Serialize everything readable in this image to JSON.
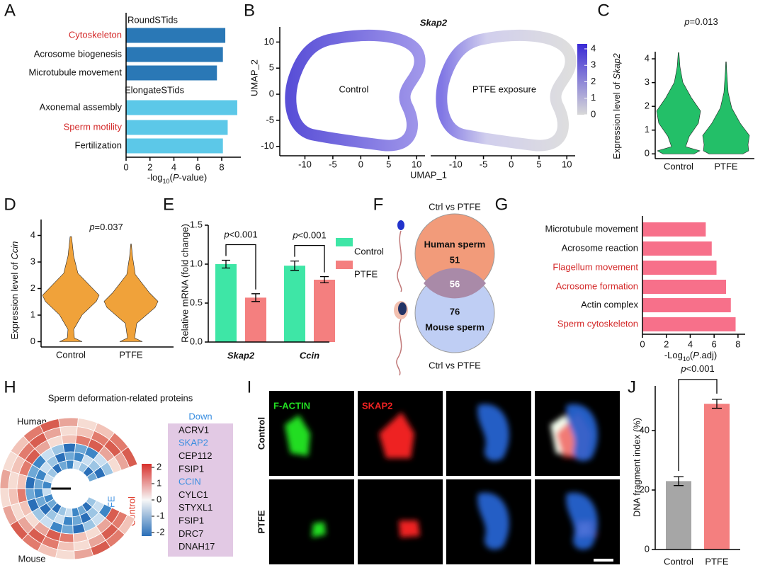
{
  "panel_labels": [
    "A",
    "B",
    "C",
    "D",
    "E",
    "F",
    "G",
    "H",
    "I",
    "J"
  ],
  "chart_data": [
    {
      "type": "barh",
      "group_labels": [
        "RoundSTids",
        "ElongateSTids"
      ],
      "categories": [
        "Cytoskeleton",
        "Acrosome biogenesis",
        "Microtubule movement",
        "Axonemal assembly",
        "Sperm motility",
        "Fertilization"
      ],
      "values": [
        8.3,
        8.1,
        7.6,
        9.3,
        8.5,
        8.1
      ],
      "colors": [
        "#2a78b6",
        "#2a78b6",
        "#2a78b6",
        "#5cc8e8",
        "#5cc8e8",
        "#5cc8e8"
      ],
      "label_colors": [
        "#d42a2a",
        "#111111",
        "#111111",
        "#111111",
        "#d42a2a",
        "#111111"
      ],
      "xlabel_parts": [
        "-log",
        "10",
        "(",
        "P",
        "-value)"
      ],
      "xlim": [
        0,
        9.6
      ],
      "xticks": [
        0,
        2,
        4,
        6,
        8
      ]
    },
    {
      "type": "umap",
      "title": "Skap2",
      "xlabel": "UMAP_1",
      "ylabel": "UMAP_2",
      "panels": [
        "Control",
        "PTFE exposure"
      ],
      "xlim": [
        -14.5,
        11.5
      ],
      "xticks": [
        -10,
        -5,
        0,
        5,
        10
      ],
      "ylim": [
        -11.8,
        12.9
      ],
      "yticks": [
        10,
        5,
        0,
        -5,
        -10
      ],
      "colorbar": {
        "lim": [
          0,
          4.3
        ],
        "ticks": [
          4,
          3,
          2,
          1,
          0
        ],
        "colors": [
          "#d8d8d8",
          "#3a2ad6"
        ]
      }
    },
    {
      "type": "violin",
      "title_parts": [
        "p",
        "=0.013"
      ],
      "categories": [
        "Control",
        "PTFE"
      ],
      "color": "#23bf68",
      "ylabel_parts": [
        "Expression level of ",
        "Skap2"
      ],
      "ylim": [
        -0.2,
        4.3
      ],
      "yticks": [
        0,
        1,
        2,
        3,
        4
      ]
    },
    {
      "type": "violin",
      "title_parts": [
        "p",
        "=0.037"
      ],
      "categories": [
        "Control",
        "PTFE"
      ],
      "color": "#f0a23a",
      "ylabel_parts": [
        "Expression level of ",
        "Ccin"
      ],
      "ylim": [
        -0.2,
        4.6
      ],
      "yticks": [
        0,
        1,
        2,
        3,
        4
      ]
    },
    {
      "type": "grouped_bar",
      "categories": [
        "Skap2",
        "Ccin"
      ],
      "ylabel": "Relative mRNA (fold change)",
      "series": [
        {
          "name": "Control",
          "color": "#3ee6a6",
          "values": [
            1.0,
            0.98
          ],
          "errors": [
            0.05,
            0.06
          ]
        },
        {
          "name": "PTFE",
          "color": "#f47f7f",
          "values": [
            0.57,
            0.8
          ],
          "errors": [
            0.05,
            0.04
          ]
        }
      ],
      "annotations": [
        [
          "p",
          "<0.001"
        ],
        [
          "p",
          "<0.001"
        ]
      ],
      "ylim": [
        0,
        1.5
      ],
      "yticks": [
        {
          "value": 0,
          "label": "0.0"
        },
        0.5,
        {
          "value": 1,
          "label": "1.0"
        },
        1.5
      ]
    },
    {
      "type": "barh",
      "categories": [
        "Microtubule movement",
        "Acrosome reaction",
        "Flagellum movement",
        "Acrosome formation",
        "Actin complex",
        "Sperm cytoskeleton"
      ],
      "values": [
        5.3,
        5.8,
        6.2,
        7.0,
        7.4,
        7.8
      ],
      "color": "#f7708a",
      "label_colors": [
        "#111111",
        "#111111",
        "#d42a2a",
        "#d42a2a",
        "#111111",
        "#d42a2a"
      ],
      "xlabel_parts": [
        "-Log",
        "10",
        "(",
        "P",
        ".adj)"
      ],
      "xlim": [
        0,
        8.6
      ],
      "xticks": [
        0,
        2,
        4,
        6,
        8
      ]
    },
    {
      "type": "bar",
      "categories": [
        "Control",
        "PTFE"
      ],
      "values": [
        23,
        49
      ],
      "errors": [
        1.5,
        1.5
      ],
      "colors": [
        "#a6a6a6",
        "#f47f7f"
      ],
      "ylabel": "DNA fragment index (%)",
      "annotation": [
        "p",
        "<0.001"
      ],
      "ylim": [
        0,
        55
      ],
      "yticks": [
        0,
        20,
        40
      ]
    }
  ],
  "venn": {
    "labels": [
      "Ctrl vs PTFE",
      "Ctrl vs PTFE"
    ],
    "sets": [
      {
        "name": "Human sperm",
        "count": 51,
        "color": "#f29b7a"
      },
      {
        "name": "Mouse sperm",
        "count": 76,
        "color": "#a9bdf0"
      }
    ],
    "overlap": 56
  },
  "heatmap": {
    "title": "Sperm deformation-related proteins",
    "species": [
      "Human",
      "Mouse"
    ],
    "groups": [
      "PTFE",
      "Control"
    ],
    "colorbar_ticks": [
      2,
      1,
      0,
      -1,
      -2
    ],
    "list_title": "Down",
    "items": [
      "ACRV1",
      "SKAP2",
      "CEP112",
      "FSIP1",
      "CCIN",
      "CYLC1",
      "STYXL1",
      "FSIP1",
      "DRC7",
      "DNAH17"
    ],
    "item_colors": [
      "#111111",
      "#3a8ee0",
      "#111111",
      "#111111",
      "#3a8ee0",
      "#111111",
      "#111111",
      "#111111",
      "#111111",
      "#111111"
    ]
  },
  "micrographs": {
    "channels": [
      "F-ACTIN",
      "SKAP2"
    ],
    "channel_colors": [
      "#22dd22",
      "#ee2222"
    ],
    "rows": [
      "Control",
      "PTFE"
    ]
  }
}
